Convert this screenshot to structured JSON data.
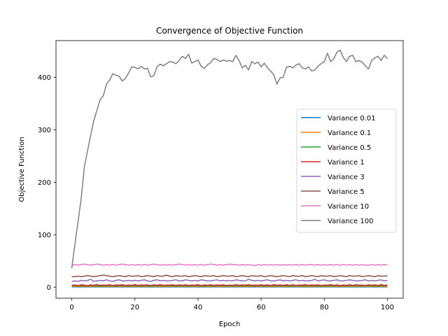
{
  "chart_data": {
    "type": "line",
    "title": "Convergence of Objective Function",
    "xlabel": "Epoch",
    "ylabel": "Objective Function",
    "xlim": [
      -5,
      105
    ],
    "ylim": [
      -21,
      470
    ],
    "xticks": [
      0,
      20,
      40,
      60,
      80,
      100
    ],
    "yticks": [
      0,
      100,
      200,
      300,
      400
    ],
    "grid": false,
    "legend_position": "center-right",
    "series": [
      {
        "name": "Variance 0.01",
        "color": "#1f77b4",
        "values": [
          0.5,
          0.5,
          0.5,
          0.5,
          0.5,
          0.5,
          0.5,
          0.5,
          0.5,
          0.5,
          0.5,
          0.5,
          0.5,
          0.5,
          0.5,
          0.5,
          0.5,
          0.5,
          0.5,
          0.5,
          0.5,
          0.5,
          0.5,
          0.5,
          0.5,
          0.5,
          0.5,
          0.5,
          0.5,
          0.5,
          0.5,
          0.5,
          0.5,
          0.5,
          0.5,
          0.5,
          0.5,
          0.5,
          0.5,
          0.5,
          0.5,
          0.5,
          0.5,
          0.5,
          0.5,
          0.5,
          0.5,
          0.5,
          0.5,
          0.5,
          0.5,
          0.5,
          0.5,
          0.5,
          0.5,
          0.5,
          0.5,
          0.5,
          0.5,
          0.5,
          0.5,
          0.5,
          0.5,
          0.5,
          0.5,
          0.5,
          0.5,
          0.5,
          0.5,
          0.5,
          0.5,
          0.5,
          0.5,
          0.5,
          0.5,
          0.5,
          0.5,
          0.5,
          0.5,
          0.5,
          0.5,
          0.5,
          0.5,
          0.5,
          0.5,
          0.5,
          0.5,
          0.5,
          0.5,
          0.5,
          0.5,
          0.5,
          0.5,
          0.5,
          0.5,
          0.5,
          0.5,
          0.5,
          0.5,
          0.5,
          0.5
        ]
      },
      {
        "name": "Variance 0.1",
        "color": "#ff7f0e",
        "values": [
          1.5,
          1.4,
          1.6,
          1.5,
          1.3,
          1.6,
          1.5,
          1.4,
          1.5,
          1.6,
          1.5,
          1.4,
          1.5,
          1.6,
          1.5,
          1.4,
          1.5,
          1.6,
          1.5,
          1.4,
          1.5,
          1.6,
          1.5,
          1.4,
          1.5,
          1.6,
          1.5,
          1.4,
          1.5,
          1.6,
          1.5,
          1.4,
          1.5,
          1.6,
          1.5,
          1.4,
          1.5,
          1.6,
          1.5,
          1.4,
          1.5,
          1.6,
          1.5,
          1.4,
          1.5,
          1.6,
          1.5,
          1.4,
          1.5,
          1.6,
          1.5,
          1.4,
          1.5,
          1.6,
          1.5,
          1.4,
          1.5,
          1.6,
          1.5,
          1.4,
          1.5,
          1.6,
          1.5,
          1.4,
          1.5,
          1.6,
          1.5,
          1.4,
          1.5,
          1.6,
          1.5,
          1.4,
          1.5,
          1.6,
          1.5,
          1.4,
          1.5,
          1.6,
          1.5,
          1.4,
          1.5,
          1.6,
          1.5,
          1.4,
          1.5,
          1.6,
          1.5,
          1.4,
          1.5,
          1.6,
          1.5,
          1.4,
          1.5,
          1.6,
          1.5,
          1.4,
          1.5,
          1.6,
          1.5,
          1.4,
          1.5
        ]
      },
      {
        "name": "Variance 0.5",
        "color": "#2ca02c",
        "values": [
          2.5,
          3.0,
          2.2,
          2.8,
          2.4,
          3.1,
          2.6,
          2.3,
          2.9,
          2.5,
          2.7,
          2.4,
          3.0,
          2.6,
          2.2,
          2.8,
          2.5,
          2.9,
          2.3,
          2.7,
          2.6,
          3.0,
          2.4,
          2.8,
          2.5,
          2.2,
          2.9,
          2.6,
          2.4,
          3.0,
          2.7,
          2.5,
          2.8,
          2.3,
          2.6,
          2.9,
          2.5,
          2.4,
          3.0,
          2.7,
          2.5,
          2.8,
          2.2,
          2.6,
          2.9,
          2.4,
          2.7,
          3.0,
          2.5,
          2.3,
          2.8,
          2.6,
          2.4,
          2.9,
          2.5,
          2.7,
          3.0,
          2.6,
          2.4,
          2.8,
          2.5,
          2.3,
          2.9,
          2.6,
          2.7,
          2.4,
          3.0,
          2.5,
          2.8,
          2.6,
          2.2,
          2.9,
          2.7,
          2.5,
          2.4,
          3.0,
          2.6,
          2.8,
          2.5,
          2.3,
          2.9,
          2.7,
          2.6,
          2.4,
          3.0,
          2.5,
          2.8,
          2.6,
          2.4,
          2.9,
          2.7,
          2.5,
          2.3,
          3.0,
          2.6,
          2.8,
          2.5,
          2.4,
          2.9,
          2.7,
          2.6
        ]
      },
      {
        "name": "Variance 1",
        "color": "#d62728",
        "values": [
          3.5,
          4.2,
          3.1,
          4.6,
          3.8,
          2.9,
          4.4,
          3.6,
          4.9,
          3.2,
          4.1,
          3.7,
          4.5,
          3.0,
          4.3,
          3.9,
          4.7,
          3.4,
          4.0,
          3.6,
          4.8,
          3.3,
          4.2,
          3.8,
          4.6,
          3.1,
          4.4,
          3.7,
          4.9,
          3.5,
          4.0,
          3.9,
          4.5,
          3.2,
          4.3,
          3.6,
          4.7,
          3.4,
          4.1,
          3.8,
          4.8,
          3.0,
          4.4,
          3.7,
          4.6,
          3.3,
          4.2,
          3.9,
          4.5,
          3.1,
          4.0,
          3.6,
          4.9,
          3.4,
          4.3,
          3.8,
          4.7,
          3.2,
          4.1,
          3.7,
          4.6,
          3.5,
          4.4,
          3.0,
          4.8,
          3.9,
          4.2,
          3.3,
          4.5,
          3.6,
          4.7,
          3.1,
          4.0,
          3.8,
          4.9,
          3.4,
          4.3,
          3.7,
          4.6,
          3.2,
          4.1,
          3.9,
          4.8,
          3.5,
          4.4,
          3.0,
          4.2,
          3.6,
          4.7,
          3.3,
          4.5,
          3.8,
          4.0,
          3.1,
          4.6,
          3.7,
          4.3,
          3.4,
          4.9,
          3.5,
          4.1
        ]
      },
      {
        "name": "Variance 3",
        "color": "#9467bd",
        "values": [
          11,
          12,
          11,
          13,
          12,
          13,
          15,
          11,
          12,
          13,
          12,
          14,
          12,
          11,
          13,
          14,
          12,
          12,
          13,
          12,
          13,
          12,
          13,
          14,
          12,
          11,
          13,
          14,
          12,
          13,
          12,
          12,
          13,
          14,
          12,
          12,
          14,
          13,
          12,
          13,
          12,
          14,
          13,
          12,
          12,
          13,
          14,
          12,
          13,
          12,
          13,
          12,
          14,
          13,
          12,
          12,
          15,
          13,
          12,
          13,
          12,
          13,
          14,
          12,
          12,
          13,
          14,
          12,
          13,
          12,
          13,
          14,
          12,
          13,
          12,
          12,
          13,
          15,
          12,
          13,
          14,
          12,
          12,
          13,
          14,
          12,
          12,
          13,
          14,
          13,
          12,
          12,
          13,
          14,
          12,
          13,
          12,
          13,
          14,
          12,
          13
        ]
      },
      {
        "name": "Variance 5",
        "color": "#8c564b",
        "values": [
          20,
          20,
          21,
          20,
          21,
          22,
          21,
          20,
          21,
          22,
          23,
          22,
          21,
          20,
          21,
          22,
          21,
          20,
          22,
          21,
          21,
          22,
          20,
          21,
          22,
          21,
          20,
          22,
          21,
          21,
          23,
          21,
          20,
          22,
          21,
          21,
          22,
          20,
          21,
          22,
          21,
          20,
          22,
          21,
          21,
          22,
          20,
          21,
          22,
          21,
          21,
          22,
          20,
          21,
          22,
          21,
          20,
          22,
          21,
          21,
          22,
          20,
          21,
          22,
          21,
          20,
          21,
          22,
          21,
          20,
          22,
          21,
          21,
          22,
          20,
          21,
          22,
          21,
          20,
          22,
          21,
          21,
          22,
          20,
          21,
          22,
          21,
          20,
          22,
          21,
          21,
          22,
          20,
          21,
          22,
          21,
          20,
          22,
          21,
          21,
          22
        ]
      },
      {
        "name": "Variance 10",
        "color": "#e377c2",
        "values": [
          42,
          43,
          42,
          43,
          44,
          43,
          42,
          43,
          44,
          43,
          42,
          43,
          42,
          43,
          42,
          43,
          44,
          43,
          42,
          43,
          42,
          43,
          42,
          43,
          42,
          43,
          44,
          43,
          42,
          43,
          42,
          43,
          42,
          43,
          44,
          43,
          42,
          43,
          42,
          43,
          42,
          43,
          42,
          43,
          44,
          43,
          42,
          43,
          42,
          43,
          44,
          43,
          43,
          42,
          43,
          42,
          43,
          42,
          41,
          43,
          42,
          43,
          42,
          43,
          42,
          43,
          42,
          43,
          42,
          43,
          42,
          43,
          42,
          43,
          42,
          43,
          43,
          42,
          43,
          42,
          43,
          42,
          43,
          42,
          43,
          42,
          43,
          42,
          43,
          42,
          43,
          42,
          43,
          42,
          42,
          43,
          42,
          43,
          42,
          43,
          42
        ]
      },
      {
        "name": "Variance 100",
        "color": "#7f7f7f",
        "values": [
          36,
          82,
          125,
          170,
          230,
          260,
          290,
          318,
          338,
          358,
          365,
          387,
          395,
          407,
          404,
          402,
          393,
          398,
          408,
          420,
          419,
          416,
          421,
          416,
          417,
          401,
          403,
          420,
          425,
          422,
          426,
          430,
          429,
          426,
          432,
          440,
          436,
          444,
          427,
          430,
          433,
          421,
          417,
          424,
          428,
          436,
          434,
          430,
          433,
          431,
          432,
          430,
          442,
          432,
          418,
          423,
          414,
          430,
          426,
          429,
          420,
          427,
          418,
          412,
          405,
          387,
          399,
          400,
          419,
          421,
          418,
          423,
          426,
          418,
          416,
          420,
          412,
          414,
          421,
          426,
          430,
          446,
          430,
          435,
          448,
          452,
          438,
          430,
          440,
          442,
          430,
          432,
          429,
          422,
          416,
          432,
          437,
          440,
          432,
          442,
          436
        ]
      }
    ]
  }
}
